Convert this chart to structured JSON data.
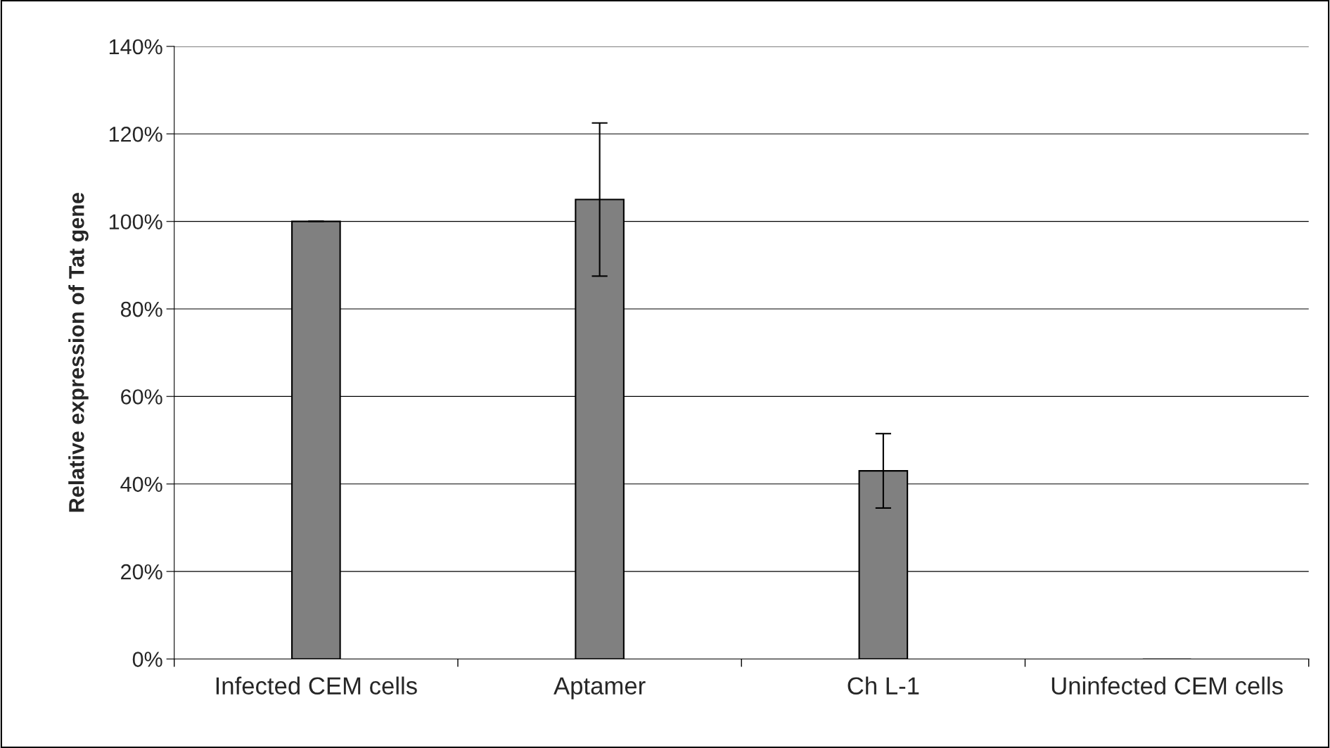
{
  "chart_data": {
    "type": "bar",
    "ylabel": "Relative expression of Tat gene",
    "categories": [
      "Infected CEM cells",
      "Aptamer",
      "Ch L-1",
      "Uninfected CEM cells"
    ],
    "values": [
      100,
      105,
      43,
      0
    ],
    "errors": [
      0,
      17.5,
      8.5,
      null
    ],
    "color": "#808080",
    "ylim": [
      0,
      140
    ],
    "yticks": [
      {
        "value": 0,
        "label": "0%"
      },
      {
        "value": 20,
        "label": "20%"
      },
      {
        "value": 40,
        "label": "40%"
      },
      {
        "value": 60,
        "label": "60%"
      },
      {
        "value": 80,
        "label": "80%"
      },
      {
        "value": 100,
        "label": "100%"
      },
      {
        "value": 120,
        "label": "120%"
      },
      {
        "value": 140,
        "label": "140%"
      }
    ],
    "grid": "y",
    "legend": false
  }
}
